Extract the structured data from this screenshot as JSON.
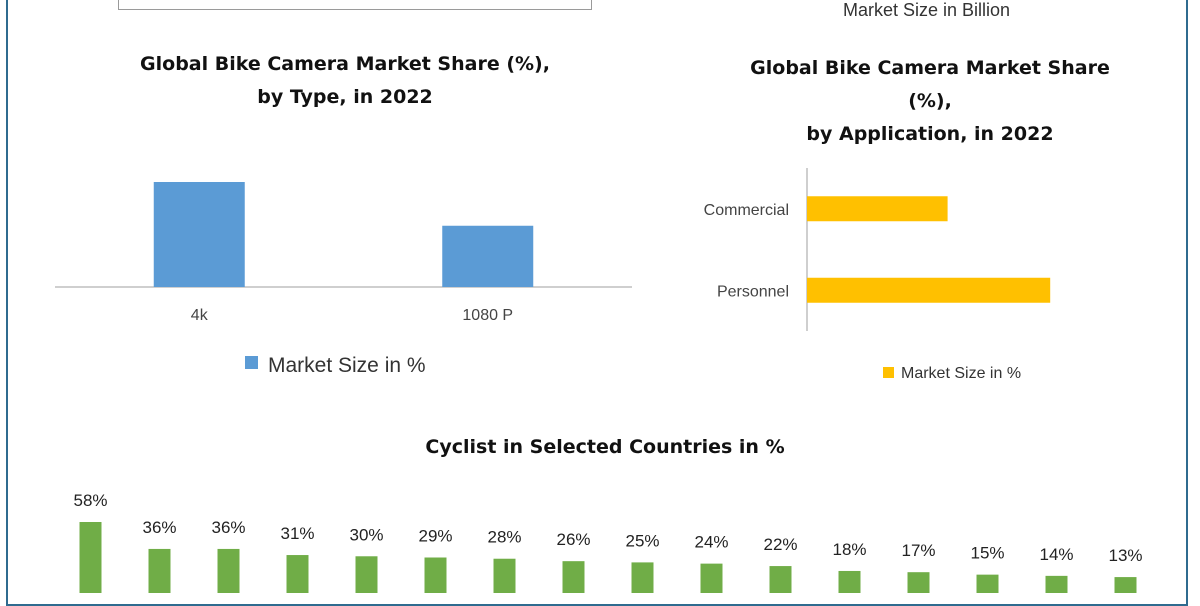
{
  "top": {
    "legend_text": "Market Size in Billion"
  },
  "chart_data": [
    {
      "type": "bar",
      "title_line1": "Global Bike Camera Market Share (%),",
      "title_line2": "by Type, in 2022",
      "categories": [
        "4k",
        "1080 P"
      ],
      "series": [
        {
          "name": "Market Size in %",
          "values": [
            60,
            35
          ]
        }
      ],
      "ylim": [
        0,
        60
      ],
      "color": "#5b9bd5",
      "grid": false,
      "legend": "bottom"
    },
    {
      "type": "bar",
      "orientation": "horizontal",
      "title_line1": "Global Bike Camera Market Share",
      "title_line2": "(%),",
      "title_line3": "by Application, in 2022",
      "categories": [
        "Commercial",
        "Personnel"
      ],
      "series": [
        {
          "name": "Market Size in %",
          "values": [
            37,
            64
          ]
        }
      ],
      "xlim": [
        0,
        100
      ],
      "color": "#ffc000",
      "grid": false,
      "legend": "bottom"
    },
    {
      "type": "bar",
      "title": "Cyclist in Selected Countries in %",
      "values": [
        58,
        36,
        36,
        31,
        30,
        29,
        28,
        26,
        25,
        24,
        22,
        18,
        17,
        15,
        14,
        13
      ],
      "value_labels": [
        "58%",
        "36%",
        "36%",
        "31%",
        "30%",
        "29%",
        "28%",
        "26%",
        "25%",
        "24%",
        "22%",
        "18%",
        "17%",
        "15%",
        "14%",
        "13%"
      ],
      "ylim": [
        0,
        60
      ],
      "color": "#70ad47",
      "grid": false
    }
  ]
}
